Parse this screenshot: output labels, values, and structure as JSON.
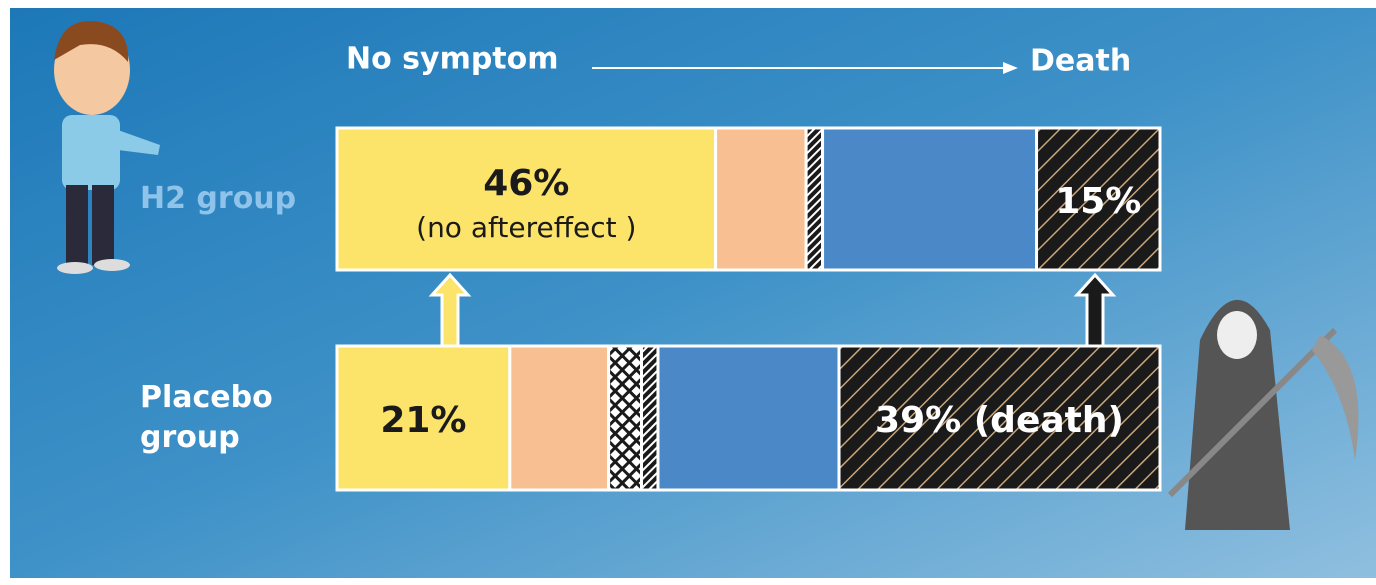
{
  "chart_data": {
    "type": "stacked-bar-horizontal",
    "scale_start_label": "No symptom",
    "scale_end_label": "Death",
    "annotation": "(no aftereffect )",
    "categories": [
      "H2 group",
      "Placebo group"
    ],
    "category_colors": [
      "#8fc3ea",
      "#ffffff"
    ],
    "series": [
      {
        "color": "#fce36a",
        "values": [
          46,
          21
        ],
        "value_labels": [
          "46%",
          "21%"
        ],
        "label_color": "#1a1a1a"
      },
      {
        "color": "#f8bf93",
        "values": [
          11,
          12
        ]
      },
      {
        "color": "#1a1a1a",
        "pattern": "crosshatch",
        "values": [
          0,
          4
        ]
      },
      {
        "color": "#1a1a1a",
        "pattern": "hatch",
        "values": [
          2,
          2
        ]
      },
      {
        "color": "#4a88c8",
        "values": [
          26,
          22
        ]
      },
      {
        "color": "#1a1a1a",
        "pattern": "hatch-gold",
        "values": [
          15,
          39
        ],
        "value_labels": [
          "15%",
          "39% (death)"
        ],
        "label_color": "#ffffff"
      }
    ]
  }
}
